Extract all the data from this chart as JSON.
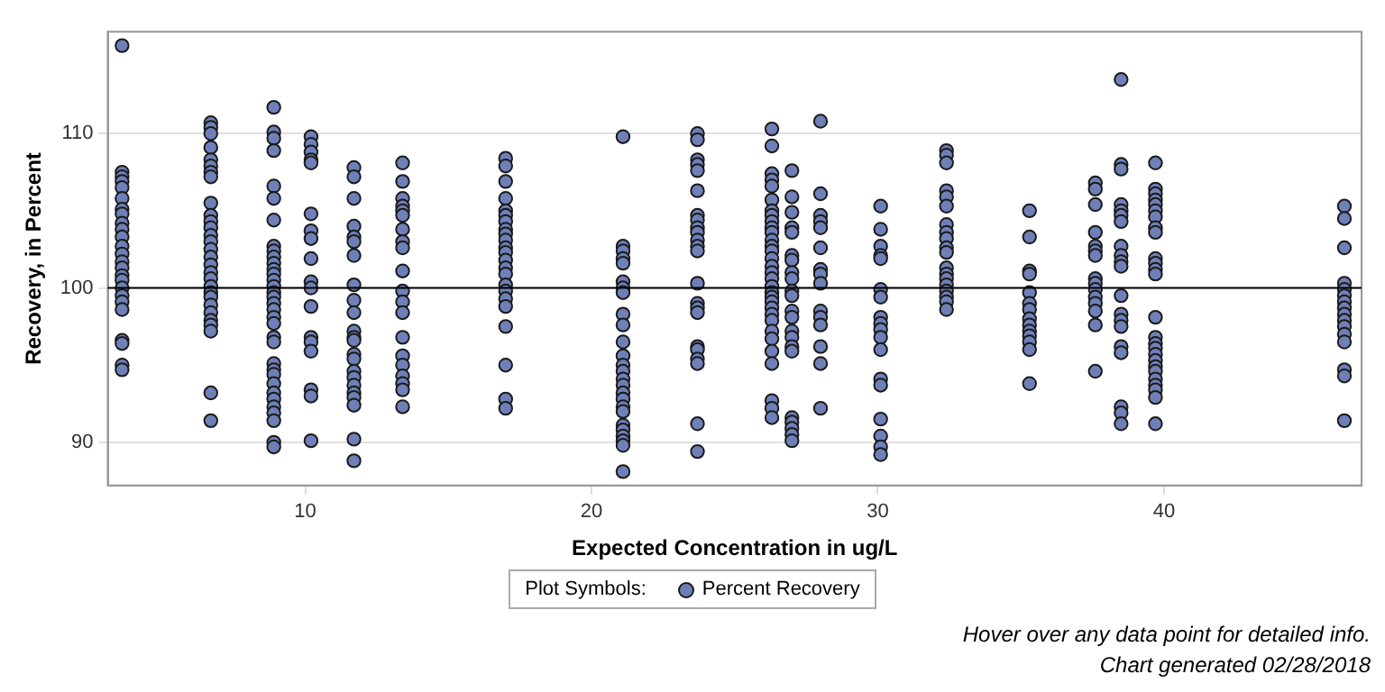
{
  "chart_data": {
    "type": "scatter",
    "xlabel": "Expected Concentration in ug/L",
    "ylabel": "Recovery, in Percent",
    "xlim": [
      3.1,
      46.9
    ],
    "xticks": [
      10,
      20,
      30,
      40
    ],
    "ylim": [
      87.2,
      116.6
    ],
    "yticks": [
      90,
      100,
      110
    ],
    "grid": "y",
    "legend": "bottom",
    "legend_title": "Plot Symbols:",
    "marker": "circle",
    "ref_lines": [
      {
        "axis": "y",
        "value": 100,
        "color": "#000000"
      }
    ],
    "annotations": [
      "Hover over any data point for detailed info.",
      "Chart generated 02/28/2018"
    ],
    "series": [
      {
        "name": "Percent Recovery",
        "color": "#6f80b8",
        "x": [
          3.6,
          3.6,
          3.6,
          3.6,
          3.6,
          3.6,
          3.6,
          3.6,
          3.6,
          3.6,
          3.6,
          3.6,
          3.6,
          3.6,
          3.6,
          3.6,
          3.6,
          3.6,
          3.6,
          3.6,
          3.6,
          3.6,
          3.6,
          3.6,
          3.6,
          6.7,
          6.7,
          6.7,
          6.7,
          6.7,
          6.7,
          6.7,
          6.7,
          6.7,
          6.7,
          6.7,
          6.7,
          6.7,
          6.7,
          6.7,
          6.7,
          6.7,
          6.7,
          6.7,
          6.7,
          6.7,
          6.7,
          6.7,
          6.7,
          6.7,
          6.7,
          6.7,
          6.7,
          6.7,
          8.9,
          8.9,
          8.9,
          8.9,
          8.9,
          8.9,
          8.9,
          8.9,
          8.9,
          8.9,
          8.9,
          8.9,
          8.9,
          8.9,
          8.9,
          8.9,
          8.9,
          8.9,
          8.9,
          8.9,
          8.9,
          8.9,
          8.9,
          8.9,
          8.9,
          8.9,
          8.9,
          8.9,
          8.9,
          8.9,
          8.9,
          8.9,
          8.9,
          8.9,
          10.2,
          10.2,
          10.2,
          10.2,
          10.2,
          10.2,
          10.2,
          10.2,
          10.2,
          10.2,
          10.2,
          10.2,
          10.2,
          10.2,
          10.2,
          10.2,
          10.2,
          10.2,
          11.7,
          11.7,
          11.7,
          11.7,
          11.7,
          11.7,
          11.7,
          11.7,
          11.7,
          11.7,
          11.7,
          11.7,
          11.7,
          11.7,
          11.7,
          11.7,
          11.7,
          11.7,
          11.7,
          11.7,
          11.7,
          11.7,
          11.7,
          13.4,
          13.4,
          13.4,
          13.4,
          13.4,
          13.4,
          13.4,
          13.4,
          13.4,
          13.4,
          13.4,
          13.4,
          13.4,
          13.4,
          13.4,
          13.4,
          13.4,
          13.4,
          13.4,
          13.4,
          17.0,
          17.0,
          17.0,
          17.0,
          17.0,
          17.0,
          17.0,
          17.0,
          17.0,
          17.0,
          17.0,
          17.0,
          17.0,
          17.0,
          17.0,
          17.0,
          17.0,
          17.0,
          17.0,
          17.0,
          17.0,
          17.0,
          17.0,
          21.1,
          21.1,
          21.1,
          21.1,
          21.1,
          21.1,
          21.1,
          21.1,
          21.1,
          21.1,
          21.1,
          21.1,
          21.1,
          21.1,
          21.1,
          21.1,
          21.1,
          21.1,
          21.1,
          21.1,
          21.1,
          21.1,
          21.1,
          21.1,
          21.1,
          21.1,
          23.7,
          23.7,
          23.7,
          23.7,
          23.7,
          23.7,
          23.7,
          23.7,
          23.7,
          23.7,
          23.7,
          23.7,
          23.7,
          23.7,
          23.7,
          23.7,
          23.7,
          23.7,
          23.7,
          23.7,
          23.7,
          23.7,
          23.7,
          26.3,
          26.3,
          26.3,
          26.3,
          26.3,
          26.3,
          26.3,
          26.3,
          26.3,
          26.3,
          26.3,
          26.3,
          26.3,
          26.3,
          26.3,
          26.3,
          26.3,
          26.3,
          26.3,
          26.3,
          26.3,
          26.3,
          26.3,
          26.3,
          26.3,
          26.3,
          26.3,
          26.3,
          26.3,
          26.3,
          26.3,
          26.3,
          27.0,
          27.0,
          27.0,
          27.0,
          27.0,
          27.0,
          27.0,
          27.0,
          27.0,
          27.0,
          27.0,
          27.0,
          27.0,
          27.0,
          27.0,
          27.0,
          27.0,
          27.0,
          27.0,
          27.0,
          27.0,
          27.0,
          28.0,
          28.0,
          28.0,
          28.0,
          28.0,
          28.0,
          28.0,
          28.0,
          28.0,
          28.0,
          28.0,
          28.0,
          28.0,
          28.0,
          28.0,
          30.1,
          30.1,
          30.1,
          30.1,
          30.1,
          30.1,
          30.1,
          30.1,
          30.1,
          30.1,
          30.1,
          30.1,
          30.1,
          30.1,
          30.1,
          30.1,
          30.1,
          30.1,
          32.4,
          32.4,
          32.4,
          32.4,
          32.4,
          32.4,
          32.4,
          32.4,
          32.4,
          32.4,
          32.4,
          32.4,
          32.4,
          32.4,
          32.4,
          32.4,
          32.4,
          32.4,
          32.4,
          35.3,
          35.3,
          35.3,
          35.3,
          35.3,
          35.3,
          35.3,
          35.3,
          35.3,
          35.3,
          35.3,
          35.3,
          35.3,
          35.3,
          37.6,
          37.6,
          37.6,
          37.6,
          37.6,
          37.6,
          37.6,
          37.6,
          37.6,
          37.6,
          37.6,
          37.6,
          37.6,
          37.6,
          37.6,
          38.5,
          38.5,
          38.5,
          38.5,
          38.5,
          38.5,
          38.5,
          38.5,
          38.5,
          38.5,
          38.5,
          38.5,
          38.5,
          38.5,
          38.5,
          38.5,
          38.5,
          38.5,
          38.5,
          38.5,
          39.7,
          39.7,
          39.7,
          39.7,
          39.7,
          39.7,
          39.7,
          39.7,
          39.7,
          39.7,
          39.7,
          39.7,
          39.7,
          39.7,
          39.7,
          39.7,
          39.7,
          39.7,
          39.7,
          39.7,
          39.7,
          39.7,
          39.7,
          39.7,
          39.7,
          39.7,
          46.3,
          46.3,
          46.3,
          46.3,
          46.3,
          46.3,
          46.3,
          46.3,
          46.3,
          46.3,
          46.3,
          46.3,
          46.3,
          46.3,
          46.3,
          46.3
        ],
        "values": [
          115.7,
          107.5,
          107.2,
          106.9,
          106.5,
          105.8,
          105.1,
          104.8,
          104.2,
          103.8,
          103.3,
          102.7,
          102.2,
          101.7,
          101.3,
          100.8,
          100.5,
          100.0,
          99.5,
          99.1,
          98.6,
          96.6,
          96.4,
          95.0,
          94.7,
          110.7,
          110.4,
          110.0,
          109.1,
          108.3,
          107.9,
          107.5,
          107.2,
          105.5,
          104.7,
          104.3,
          103.9,
          103.4,
          103.0,
          102.5,
          102.0,
          101.5,
          101.0,
          100.6,
          100.1,
          99.7,
          99.4,
          98.9,
          98.4,
          97.9,
          97.6,
          97.2,
          93.2,
          91.4,
          111.7,
          110.1,
          109.7,
          108.9,
          106.6,
          105.8,
          104.4,
          102.7,
          102.4,
          102.0,
          101.6,
          101.2,
          100.9,
          100.5,
          100.1,
          99.7,
          99.4,
          99.0,
          98.6,
          98.1,
          97.7,
          96.8,
          96.5,
          95.1,
          94.7,
          94.4,
          93.8,
          93.2,
          92.8,
          92.3,
          91.9,
          91.4,
          90.0,
          89.7,
          109.8,
          109.3,
          108.8,
          108.3,
          108.1,
          104.8,
          103.7,
          103.2,
          101.9,
          100.4,
          100.0,
          98.8,
          96.8,
          96.5,
          95.9,
          93.4,
          93.0,
          90.1,
          107.8,
          107.2,
          105.8,
          104.0,
          103.3,
          103.0,
          102.1,
          100.2,
          99.2,
          98.4,
          97.2,
          96.8,
          96.6,
          95.7,
          95.4,
          94.6,
          94.2,
          93.7,
          93.2,
          92.9,
          92.4,
          90.2,
          88.8,
          108.1,
          106.9,
          105.8,
          105.3,
          105.0,
          104.7,
          103.8,
          103.0,
          102.6,
          101.1,
          99.8,
          99.1,
          98.4,
          96.8,
          95.6,
          95.0,
          94.3,
          93.8,
          93.4,
          92.3,
          108.4,
          107.9,
          106.9,
          105.8,
          105.0,
          104.7,
          104.3,
          103.8,
          103.5,
          103.1,
          102.6,
          102.3,
          101.8,
          101.3,
          100.9,
          100.2,
          99.8,
          99.3,
          98.8,
          97.5,
          95.0,
          92.8,
          92.2,
          109.8,
          102.7,
          102.4,
          101.9,
          101.6,
          100.4,
          100.0,
          99.7,
          98.3,
          97.6,
          96.5,
          95.6,
          95.0,
          94.6,
          94.1,
          93.7,
          93.2,
          92.8,
          92.3,
          92.0,
          91.1,
          90.8,
          90.4,
          90.1,
          89.8,
          88.1,
          110.0,
          109.6,
          108.3,
          108.0,
          107.6,
          106.3,
          104.7,
          104.4,
          103.9,
          103.6,
          103.1,
          102.7,
          102.4,
          100.3,
          99.0,
          98.7,
          98.4,
          96.2,
          96.0,
          95.4,
          95.1,
          91.2,
          89.4,
          110.3,
          109.2,
          107.4,
          107.0,
          106.6,
          105.7,
          105.0,
          104.7,
          104.3,
          103.9,
          103.6,
          103.1,
          102.7,
          102.4,
          101.9,
          101.4,
          101.0,
          100.6,
          100.1,
          99.7,
          99.4,
          99.1,
          98.7,
          98.3,
          97.9,
          97.2,
          96.7,
          95.9,
          95.1,
          92.7,
          92.2,
          91.6,
          107.6,
          105.9,
          104.9,
          103.9,
          103.6,
          102.1,
          101.8,
          101.0,
          100.6,
          99.8,
          99.5,
          98.5,
          98.1,
          97.2,
          96.8,
          96.2,
          95.9,
          91.6,
          91.3,
          90.9,
          90.5,
          90.1,
          110.8,
          106.1,
          104.7,
          104.3,
          103.9,
          102.6,
          101.2,
          100.9,
          100.3,
          98.5,
          98.1,
          97.6,
          96.2,
          95.1,
          92.2,
          105.3,
          103.8,
          102.7,
          102.1,
          101.9,
          99.9,
          99.4,
          98.1,
          97.7,
          97.3,
          96.8,
          96.0,
          94.1,
          93.7,
          91.5,
          90.4,
          89.7,
          89.2,
          108.9,
          108.6,
          108.1,
          106.3,
          105.9,
          105.3,
          104.1,
          103.6,
          103.2,
          102.6,
          102.3,
          101.3,
          100.9,
          100.6,
          100.2,
          99.8,
          99.4,
          99.1,
          98.6,
          105.0,
          103.3,
          101.1,
          100.9,
          99.7,
          99.0,
          98.6,
          98.0,
          97.6,
          97.2,
          96.9,
          96.5,
          96.0,
          93.8,
          106.8,
          106.4,
          105.4,
          103.6,
          102.7,
          102.4,
          102.1,
          100.6,
          100.3,
          99.9,
          99.4,
          99.0,
          98.5,
          97.6,
          94.6,
          113.5,
          108.0,
          107.7,
          105.4,
          105.0,
          104.7,
          104.3,
          102.7,
          102.1,
          101.7,
          101.4,
          99.5,
          98.3,
          97.9,
          97.5,
          96.2,
          95.8,
          92.3,
          91.9,
          91.2,
          108.1,
          106.4,
          106.1,
          105.7,
          105.4,
          105.0,
          104.6,
          103.9,
          103.6,
          101.9,
          101.6,
          101.2,
          100.9,
          98.1,
          96.8,
          96.4,
          96.1,
          95.7,
          95.3,
          94.9,
          94.6,
          94.1,
          93.7,
          93.4,
          92.9,
          91.2,
          105.3,
          104.5,
          102.6,
          100.3,
          99.9,
          99.5,
          99.1,
          98.7,
          98.3,
          97.9,
          97.5,
          97.0,
          96.5,
          94.7,
          94.3,
          91.4
        ]
      }
    ]
  }
}
